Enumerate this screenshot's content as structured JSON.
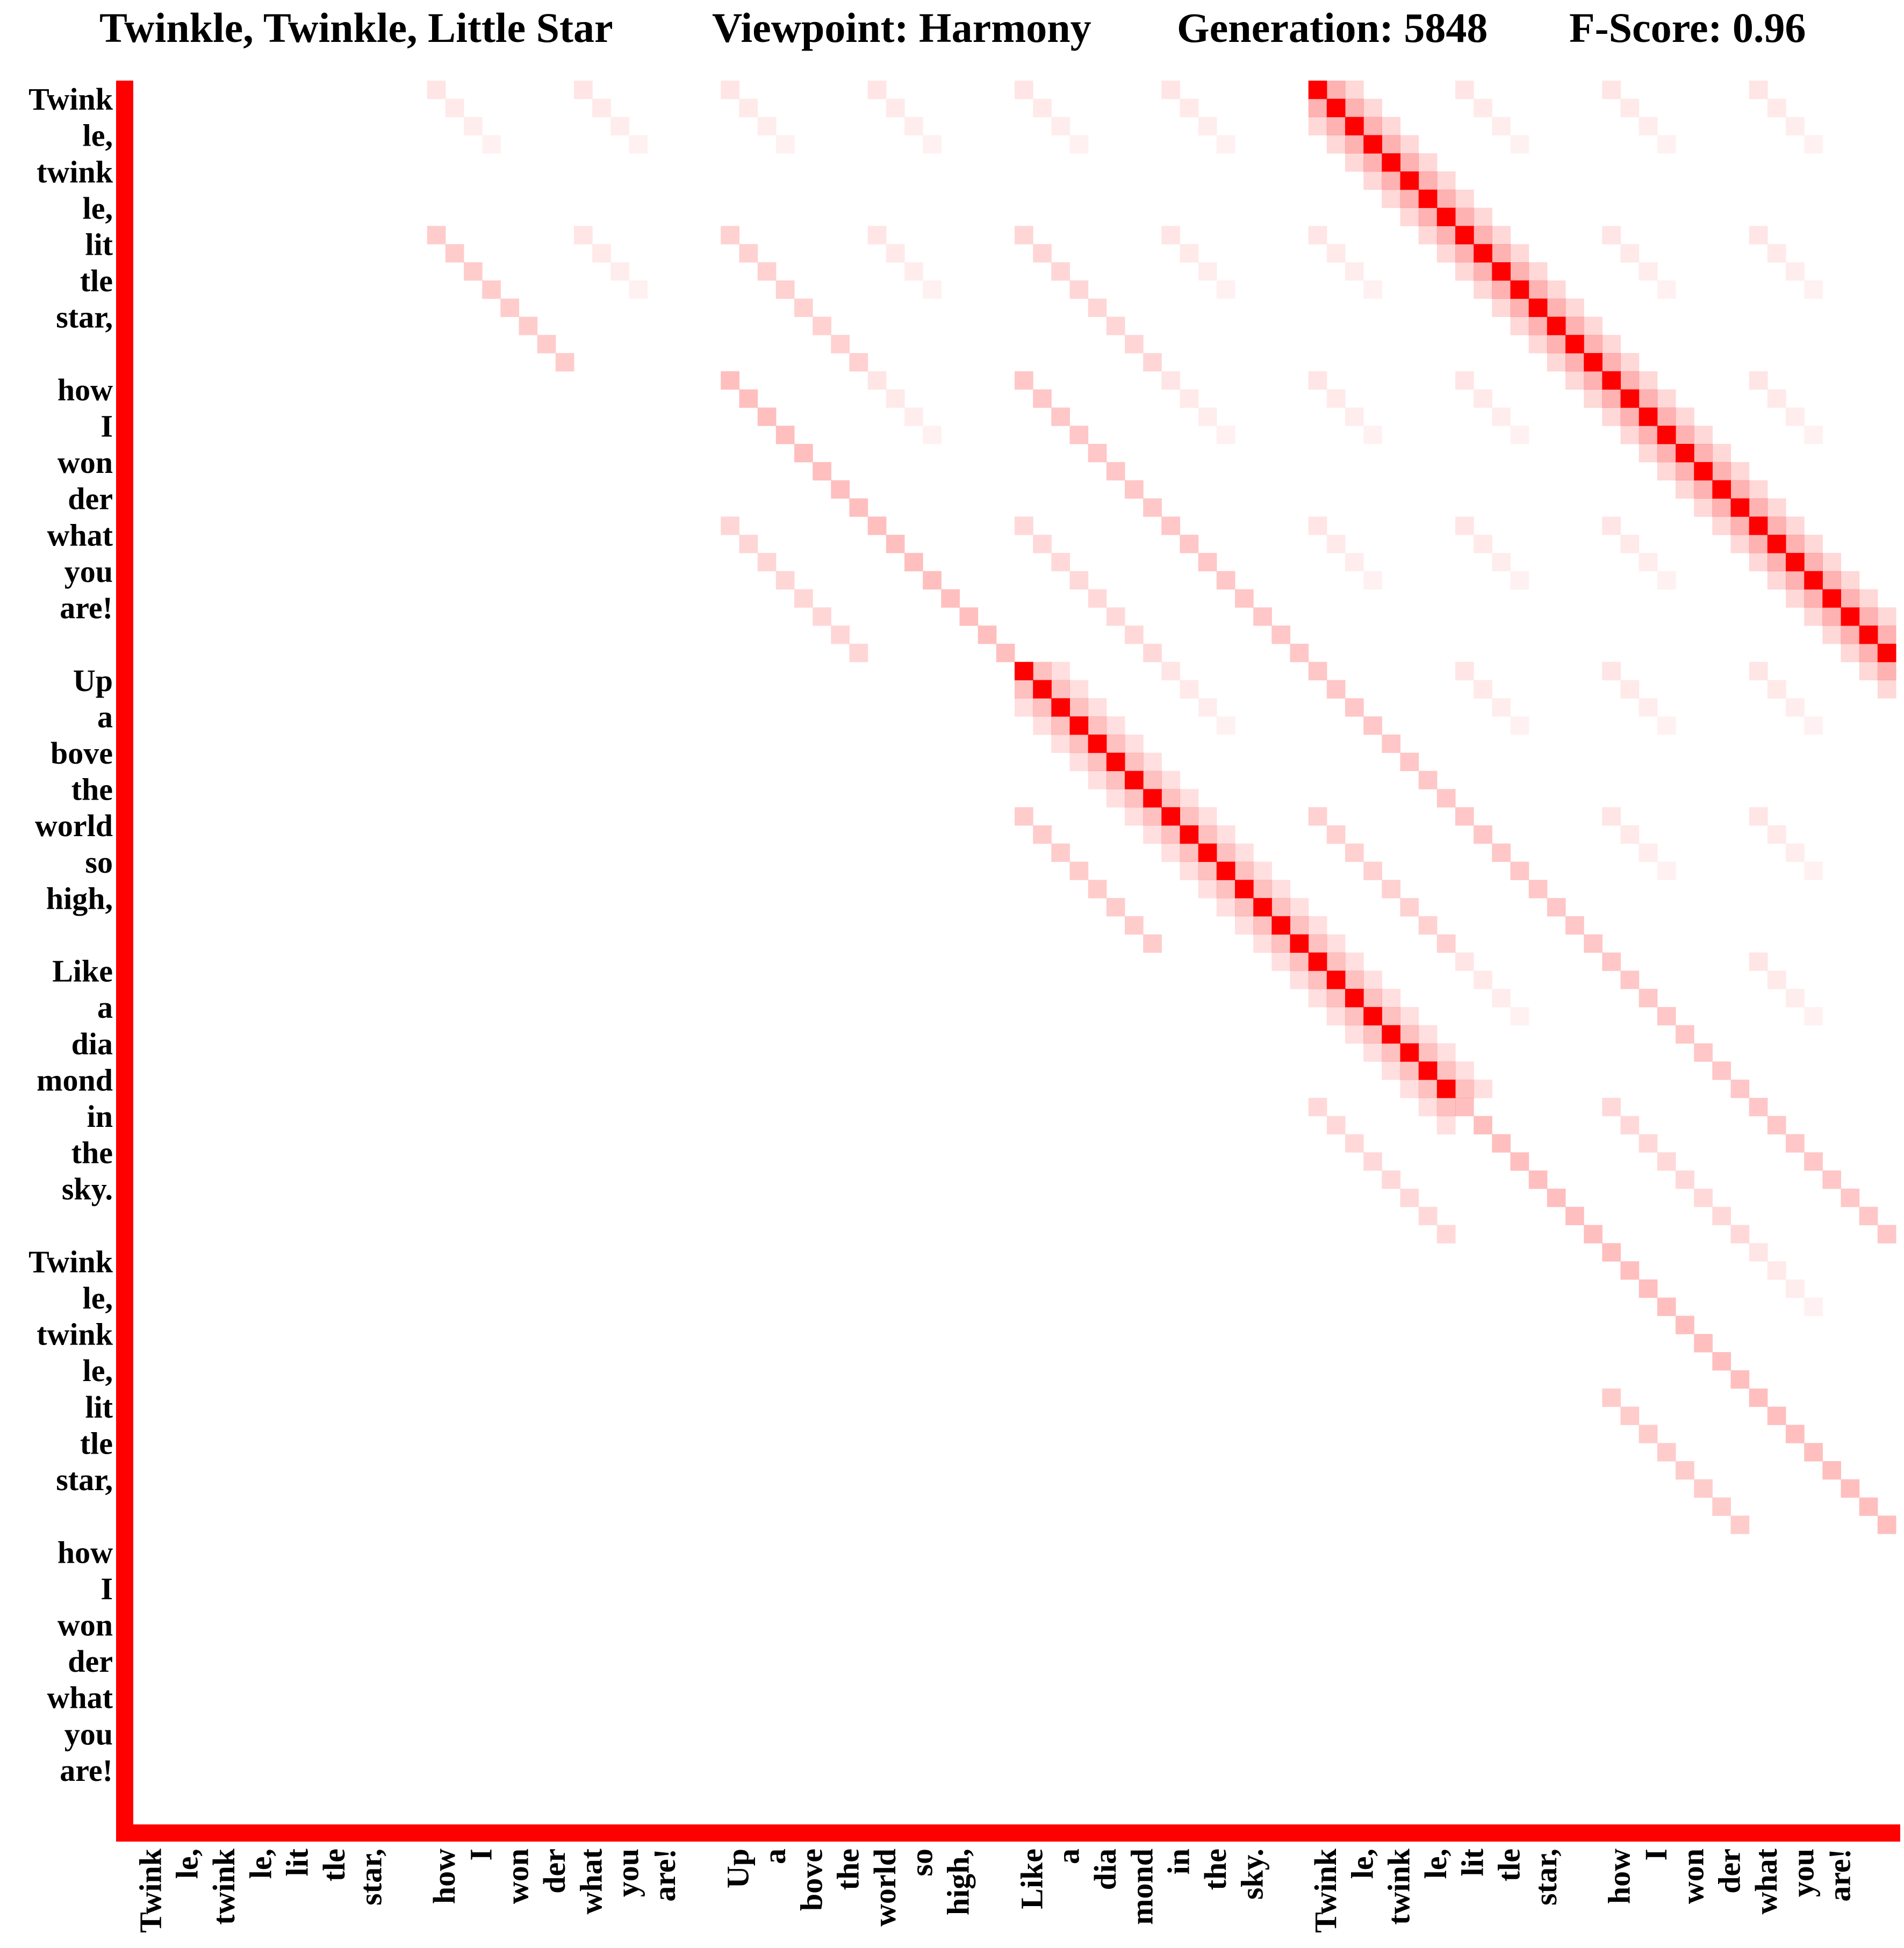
{
  "header": {
    "song_title": "Twinkle, Twinkle, Little Star",
    "viewpoint": "Viewpoint: Harmony",
    "generation": "Generation: 5848",
    "fscore": "F-Score: 0.96"
  },
  "colors": {
    "accent": "#ff0000",
    "background": "#ffffff",
    "text": "#000000"
  },
  "chart_data": {
    "type": "heatmap",
    "title": "Twinkle, Twinkle, Little Star",
    "viewpoint": "Harmony",
    "generation": 5848,
    "f_score": 0.96,
    "y_labels": [
      "Twink",
      "le,",
      "twink",
      "le,",
      "lit",
      "tle",
      "star,",
      "",
      "how",
      "I",
      "won",
      "der",
      "what",
      "you",
      "are!",
      "",
      "Up",
      "a",
      "bove",
      "the",
      "world",
      "so",
      "high,",
      "",
      "Like",
      "a",
      "dia",
      "mond",
      "in",
      "the",
      "sky.",
      "",
      "Twink",
      "le,",
      "twink",
      "le,",
      "lit",
      "tle",
      "star,",
      "",
      "how",
      "I",
      "won",
      "der",
      "what",
      "you",
      "are!",
      ""
    ],
    "x_labels": [
      "Twink",
      "le,",
      "twink",
      "le,",
      "lit",
      "tle",
      "star,",
      "",
      "how",
      "I",
      "won",
      "der",
      "what",
      "you",
      "are!",
      "",
      "Up",
      "a",
      "bove",
      "the",
      "world",
      "so",
      "high,",
      "",
      "Like",
      "a",
      "dia",
      "mond",
      "in",
      "the",
      "sky.",
      "",
      "Twink",
      "le,",
      "twink",
      "le,",
      "lit",
      "tle",
      "star,",
      "",
      "how",
      "I",
      "won",
      "der",
      "what",
      "you",
      "are!",
      ""
    ],
    "grid_size": 96,
    "axis_bar_color": "#ff0000",
    "diagonals": [
      {
        "row_start": 0,
        "col_start": 64,
        "length": 32,
        "intensity": 1.0
      },
      {
        "row_start": 32,
        "col_start": 48,
        "length": 24,
        "intensity": 1.0
      },
      {
        "row_start": 0,
        "col_start": 64,
        "length": 32,
        "intensity": 0.55,
        "spread": 2
      },
      {
        "row_start": 32,
        "col_start": 48,
        "length": 24,
        "intensity": 0.45,
        "spread": 2
      },
      {
        "row_start": 16,
        "col_start": 32,
        "length": 48,
        "intensity": 0.25
      },
      {
        "row_start": 64,
        "col_start": 80,
        "length": 16,
        "intensity": 0.25
      },
      {
        "row_start": 16,
        "col_start": 48,
        "length": 48,
        "intensity": 0.22
      },
      {
        "row_start": 32,
        "col_start": 64,
        "length": 32,
        "intensity": 0.22
      },
      {
        "row_start": 48,
        "col_start": 80,
        "length": 16,
        "intensity": 0.22
      },
      {
        "row_start": 8,
        "col_start": 16,
        "length": 8,
        "intensity": 0.2
      },
      {
        "row_start": 40,
        "col_start": 48,
        "length": 8,
        "intensity": 0.2
      },
      {
        "row_start": 72,
        "col_start": 80,
        "length": 8,
        "intensity": 0.2
      },
      {
        "row_start": 40,
        "col_start": 64,
        "length": 8,
        "intensity": 0.18
      },
      {
        "row_start": 72,
        "col_start": 88,
        "length": 8,
        "intensity": 0.18
      },
      {
        "row_start": 8,
        "col_start": 32,
        "length": 8,
        "intensity": 0.18
      },
      {
        "row_start": 8,
        "col_start": 48,
        "length": 8,
        "intensity": 0.16
      },
      {
        "row_start": 24,
        "col_start": 32,
        "length": 8,
        "intensity": 0.16
      },
      {
        "row_start": 24,
        "col_start": 48,
        "length": 8,
        "intensity": 0.15
      },
      {
        "row_start": 56,
        "col_start": 64,
        "length": 8,
        "intensity": 0.15
      },
      {
        "row_start": 56,
        "col_start": 80,
        "length": 8,
        "intensity": 0.15
      }
    ],
    "periodic": {
      "period": 8,
      "blocks": 12,
      "intensity": 0.1
    }
  }
}
